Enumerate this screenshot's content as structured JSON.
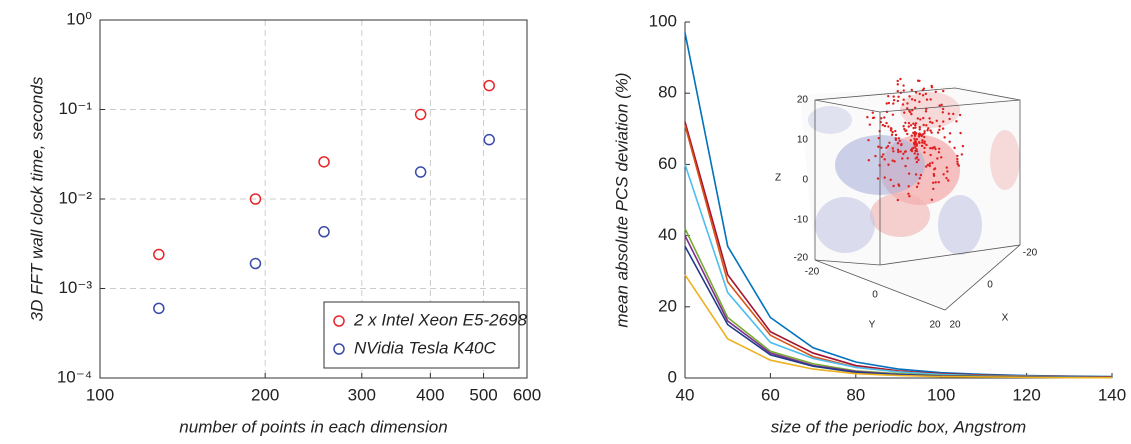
{
  "chart_data": [
    {
      "type": "scatter",
      "xlabel": "number of points in each dimension",
      "ylabel": "3D FFT wall clock time, seconds",
      "xscale": "log",
      "yscale": "log",
      "grid": true,
      "legend": "lower right",
      "xlim": [
        100,
        600
      ],
      "xticks": [
        100,
        200,
        300,
        400,
        500,
        600
      ],
      "ylim": [
        0.0001,
        1
      ],
      "yticks": [
        {
          "value": 0.0001,
          "label": "10⁻⁴"
        },
        {
          "value": 0.001,
          "label": "10⁻³"
        },
        {
          "value": 0.01,
          "label": "10⁻²"
        },
        {
          "value": 0.1,
          "label": "10⁻¹"
        },
        {
          "value": 1,
          "label": "10⁰"
        }
      ],
      "x": [
        128,
        192,
        256,
        384,
        512
      ],
      "series": [
        {
          "name": "2 x Intel Xeon E5-2698",
          "color": "#e8252a",
          "values": [
            0.0024,
            0.01,
            0.026,
            0.088,
            0.185
          ]
        },
        {
          "name": "NVidia Tesla K40C",
          "color": "#3a4aa8",
          "values": [
            0.0006,
            0.0019,
            0.0043,
            0.02,
            0.046
          ]
        }
      ]
    },
    {
      "type": "line",
      "xlabel": "size of the periodic box, Angstrom",
      "ylabel": "mean absolute PCS deviation (%)",
      "xlim": [
        40,
        140
      ],
      "xticks": [
        40,
        60,
        80,
        100,
        120,
        140
      ],
      "ylim": [
        0,
        100
      ],
      "yticks": [
        0,
        20,
        40,
        60,
        80,
        100
      ],
      "x": [
        40,
        50,
        60,
        70,
        80,
        90,
        100,
        110,
        120,
        130,
        140
      ],
      "series": [
        {
          "color": "#0072bd",
          "values": [
            97,
            37,
            17,
            8.5,
            4.5,
            2.5,
            1.5,
            1,
            0.7,
            0.5,
            0.4
          ]
        },
        {
          "color": "#a2142f",
          "values": [
            72,
            29,
            13,
            7,
            3.5,
            2,
            1.2,
            0.8,
            0.5,
            0.4,
            0.3
          ]
        },
        {
          "color": "#d95319",
          "values": [
            71,
            27,
            12,
            6,
            3,
            1.8,
            1,
            0.7,
            0.5,
            0.3,
            0.2
          ]
        },
        {
          "color": "#4dbeee",
          "values": [
            60,
            24,
            10,
            5.5,
            3,
            1.7,
            1,
            0.6,
            0.4,
            0.3,
            0.2
          ]
        },
        {
          "color": "#77ac30",
          "values": [
            42,
            17,
            7.5,
            4,
            2,
            1.2,
            0.7,
            0.5,
            0.3,
            0.2,
            0.2
          ]
        },
        {
          "color": "#7e2f8e",
          "values": [
            40,
            16,
            7,
            3.5,
            1.8,
            1,
            0.6,
            0.4,
            0.3,
            0.2,
            0.1
          ]
        },
        {
          "color": "#1f3c88",
          "values": [
            37,
            15,
            6.5,
            3.3,
            1.6,
            0.9,
            0.5,
            0.4,
            0.3,
            0.2,
            0.1
          ]
        },
        {
          "color": "#edb120",
          "values": [
            29,
            11,
            5,
            2.5,
            1.2,
            0.7,
            0.4,
            0.3,
            0.2,
            0.1,
            0.1
          ]
        }
      ],
      "inset": {
        "z_label": "Z",
        "y_label": "Y",
        "x_label": "X",
        "z_ticks": [
          "20",
          "10",
          "0",
          "-10",
          "-20"
        ],
        "y_ticks": [
          "-20",
          "0",
          "20"
        ],
        "x_ticks": [
          "20",
          "0",
          "-20"
        ]
      }
    }
  ]
}
